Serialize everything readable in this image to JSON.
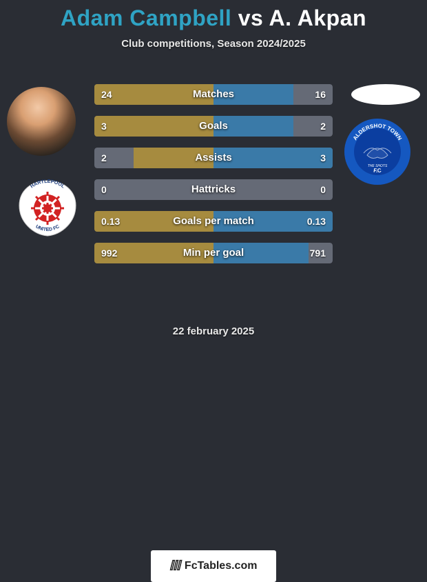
{
  "title": {
    "player1": "Adam Campbell",
    "vs": " vs ",
    "player2": "A. Akpan",
    "color1": "#2fa3c4",
    "color2": "#ffffff"
  },
  "subtitle": "Club competitions, Season 2024/2025",
  "date": "22 february 2025",
  "brand": "FcTables.com",
  "colors": {
    "bar_left_bg": "#656a76",
    "bar_right_bg": "#656a76",
    "fill_left": "#a68b3f",
    "fill_right": "#3a7aa8",
    "background": "#2a2d34"
  },
  "stats": [
    {
      "label": "Matches",
      "left_val": "24",
      "right_val": "16",
      "left_pct": 100,
      "right_pct": 67
    },
    {
      "label": "Goals",
      "left_val": "3",
      "right_val": "2",
      "left_pct": 100,
      "right_pct": 67
    },
    {
      "label": "Assists",
      "left_val": "2",
      "right_val": "3",
      "left_pct": 67,
      "right_pct": 100
    },
    {
      "label": "Hattricks",
      "left_val": "0",
      "right_val": "0",
      "left_pct": 0,
      "right_pct": 0
    },
    {
      "label": "Goals per match",
      "left_val": "0.13",
      "right_val": "0.13",
      "left_pct": 100,
      "right_pct": 100
    },
    {
      "label": "Min per goal",
      "left_val": "992",
      "right_val": "791",
      "left_pct": 100,
      "right_pct": 80
    }
  ],
  "crest_right": {
    "ring_color": "#1558c0",
    "inner_color": "#0b3ea0",
    "text_color": "#ffffff",
    "top_text": "ALDERSHOT TOWN",
    "bottom_text": "F.C",
    "center_text": "THE SHOTS"
  },
  "crest_left": {
    "ring_color": "#ffffff",
    "wheel_color": "#d22222",
    "text_top": "HARTLEPOOL",
    "text_bottom": "UNITED FC"
  }
}
